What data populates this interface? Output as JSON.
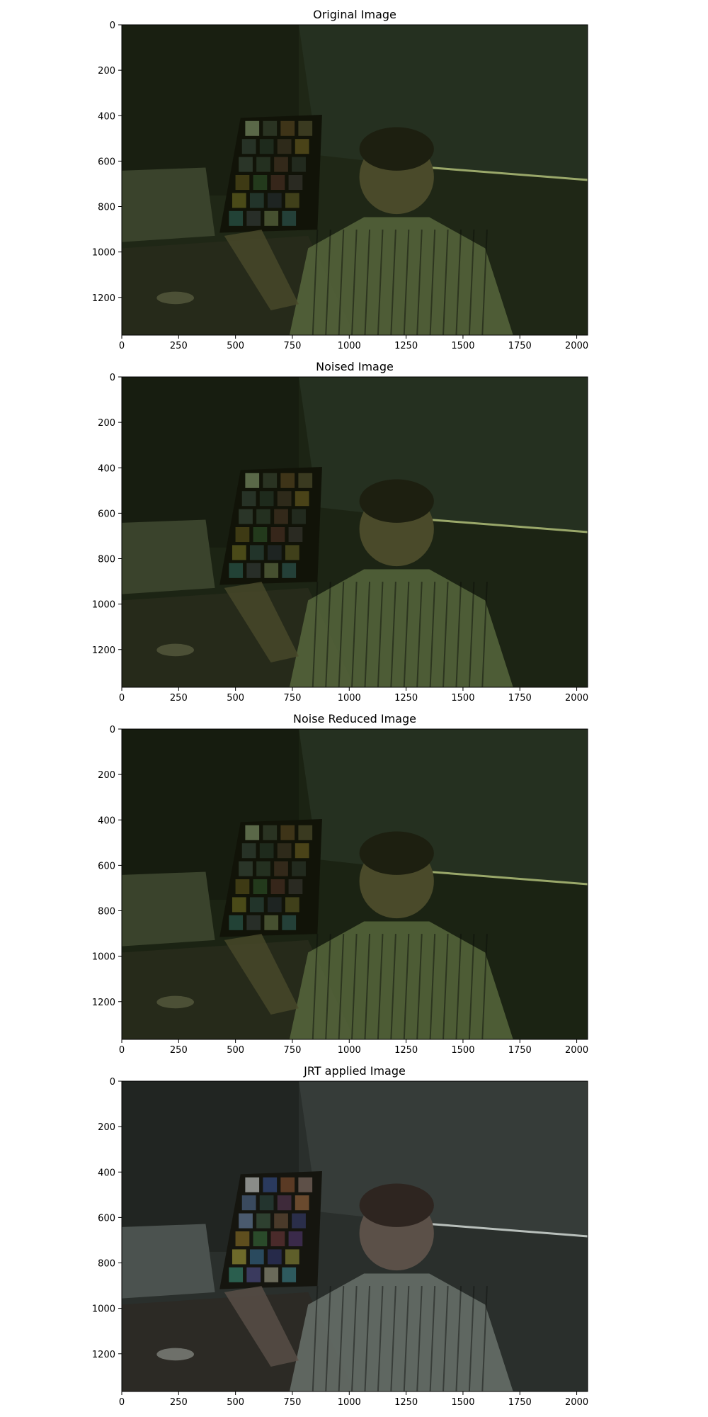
{
  "chart_data": [
    {
      "type": "image",
      "title": "Original Image",
      "x_ticks": [
        0,
        250,
        500,
        750,
        1000,
        1250,
        1500,
        1750,
        2000
      ],
      "y_ticks": [
        0,
        200,
        400,
        600,
        800,
        1000,
        1200
      ],
      "xlim": [
        0,
        2048
      ],
      "ylim": [
        1366,
        0
      ],
      "tone": "dark-green",
      "base_color": "#1f2716"
    },
    {
      "type": "image",
      "title": "Noised Image",
      "x_ticks": [
        0,
        250,
        500,
        750,
        1000,
        1250,
        1500,
        1750,
        2000
      ],
      "y_ticks": [
        0,
        200,
        400,
        600,
        800,
        1000,
        1200
      ],
      "xlim": [
        0,
        2048
      ],
      "ylim": [
        1366,
        0
      ],
      "tone": "dark-green",
      "base_color": "#1c2414"
    },
    {
      "type": "image",
      "title": "Noise Reduced Image",
      "x_ticks": [
        0,
        250,
        500,
        750,
        1000,
        1250,
        1500,
        1750,
        2000
      ],
      "y_ticks": [
        0,
        200,
        400,
        600,
        800,
        1000,
        1200
      ],
      "xlim": [
        0,
        2048
      ],
      "ylim": [
        1366,
        0
      ],
      "tone": "dark-green",
      "base_color": "#1b2313"
    },
    {
      "type": "image",
      "title": "JRT applied Image",
      "x_ticks": [
        0,
        250,
        500,
        750,
        1000,
        1250,
        1500,
        1750,
        2000
      ],
      "y_ticks": [
        0,
        200,
        400,
        600,
        800,
        1000,
        1200
      ],
      "xlim": [
        0,
        2048
      ],
      "ylim": [
        1366,
        0
      ],
      "tone": "dark-grey",
      "base_color": "#262b28"
    }
  ]
}
